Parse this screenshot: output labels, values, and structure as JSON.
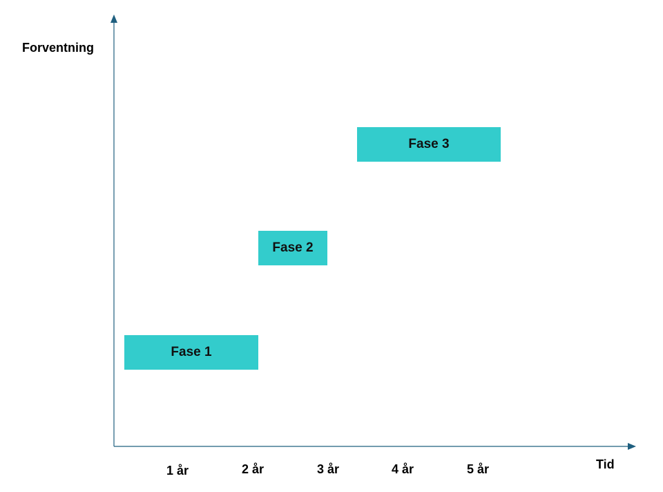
{
  "axes": {
    "y_title": "Forventning",
    "x_title": "Tid",
    "color": "#1f5f7f"
  },
  "ticks": [
    "1 år",
    "2 år",
    "3 år",
    "4 år",
    "5 år"
  ],
  "phases": [
    {
      "label": "Fase 1",
      "color": "#33cccc"
    },
    {
      "label": "Fase 2",
      "color": "#33cccc"
    },
    {
      "label": "Fase 3",
      "color": "#33cccc"
    }
  ]
}
